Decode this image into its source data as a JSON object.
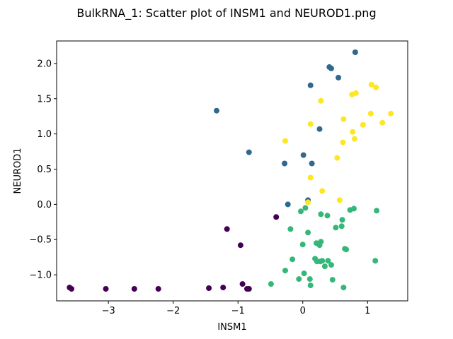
{
  "chart_data": {
    "type": "scatter",
    "title": "BulkRNA_1: Scatter plot of INSM1 and NEUROD1.png",
    "xlabel": "INSM1",
    "ylabel": "NEUROD1",
    "xlim": [
      -3.8,
      1.62
    ],
    "ylim": [
      -1.37,
      2.32
    ],
    "xticks": [
      -3,
      -2,
      -1,
      0,
      1
    ],
    "yticks": [
      -1.0,
      -0.5,
      0.0,
      0.5,
      1.0,
      1.5,
      2.0
    ],
    "xtick_labels": [
      "−3",
      "−2",
      "−1",
      "0",
      "1"
    ],
    "ytick_labels": [
      "−1.0",
      "−0.5",
      "0.0",
      "0.5",
      "1.0",
      "1.5",
      "2.0"
    ],
    "grid": false,
    "colors": [
      "#440154",
      "#31688e",
      "#35b779",
      "#fde725"
    ],
    "series": [
      {
        "color": "#440154",
        "points": [
          [
            -3.6,
            -1.18
          ],
          [
            -3.57,
            -1.2
          ],
          [
            -3.04,
            -1.2
          ],
          [
            -2.6,
            -1.2
          ],
          [
            -2.23,
            -1.2
          ],
          [
            -1.45,
            -1.19
          ],
          [
            -1.23,
            -1.18
          ],
          [
            -0.93,
            -1.13
          ],
          [
            -0.86,
            -1.2
          ],
          [
            -0.83,
            -1.2
          ],
          [
            -1.17,
            -0.35
          ],
          [
            -0.96,
            -0.58
          ],
          [
            -0.41,
            -0.18
          ]
        ]
      },
      {
        "color": "#31688e",
        "points": [
          [
            0.81,
            2.16
          ],
          [
            0.41,
            1.95
          ],
          [
            0.44,
            1.93
          ],
          [
            0.55,
            1.8
          ],
          [
            0.12,
            1.69
          ],
          [
            -1.33,
            1.33
          ],
          [
            0.26,
            1.07
          ],
          [
            -0.83,
            0.74
          ],
          [
            0.01,
            0.7
          ],
          [
            -0.28,
            0.58
          ],
          [
            0.14,
            0.58
          ],
          [
            0.08,
            0.06
          ],
          [
            -0.23,
            0.0
          ]
        ]
      },
      {
        "color": "#35b779",
        "points": [
          [
            0.79,
            -0.06
          ],
          [
            0.73,
            -0.08
          ],
          [
            1.14,
            -0.09
          ],
          [
            0.38,
            -0.16
          ],
          [
            0.28,
            -0.14
          ],
          [
            0.61,
            -0.22
          ],
          [
            -0.03,
            -0.1
          ],
          [
            0.04,
            -0.05
          ],
          [
            0.6,
            -0.31
          ],
          [
            0.51,
            -0.33
          ],
          [
            -0.19,
            -0.35
          ],
          [
            0.08,
            -0.4
          ],
          [
            0.28,
            -0.53
          ],
          [
            0.21,
            -0.55
          ],
          [
            0.26,
            -0.58
          ],
          [
            0.0,
            -0.57
          ],
          [
            0.65,
            -0.63
          ],
          [
            0.67,
            -0.64
          ],
          [
            -0.16,
            -0.78
          ],
          [
            0.19,
            -0.77
          ],
          [
            0.3,
            -0.8
          ],
          [
            0.27,
            -0.81
          ],
          [
            0.22,
            -0.81
          ],
          [
            0.39,
            -0.8
          ],
          [
            0.44,
            -0.86
          ],
          [
            0.34,
            -0.88
          ],
          [
            1.12,
            -0.8
          ],
          [
            -0.27,
            -0.94
          ],
          [
            0.02,
            -0.98
          ],
          [
            -0.06,
            -1.06
          ],
          [
            0.46,
            -1.07
          ],
          [
            0.11,
            -1.06
          ],
          [
            0.12,
            -1.15
          ],
          [
            -0.49,
            -1.13
          ],
          [
            0.63,
            -1.18
          ]
        ]
      },
      {
        "color": "#fde725",
        "points": [
          [
            1.06,
            1.7
          ],
          [
            1.13,
            1.66
          ],
          [
            0.82,
            1.58
          ],
          [
            0.76,
            1.56
          ],
          [
            0.28,
            1.47
          ],
          [
            1.05,
            1.29
          ],
          [
            1.36,
            1.29
          ],
          [
            0.63,
            1.21
          ],
          [
            1.23,
            1.16
          ],
          [
            0.12,
            1.14
          ],
          [
            0.93,
            1.13
          ],
          [
            0.77,
            1.03
          ],
          [
            0.8,
            0.93
          ],
          [
            -0.27,
            0.9
          ],
          [
            0.62,
            0.88
          ],
          [
            0.53,
            0.66
          ],
          [
            0.12,
            0.38
          ],
          [
            0.3,
            0.19
          ],
          [
            0.57,
            0.06
          ],
          [
            0.08,
            0.03
          ]
        ]
      }
    ]
  }
}
